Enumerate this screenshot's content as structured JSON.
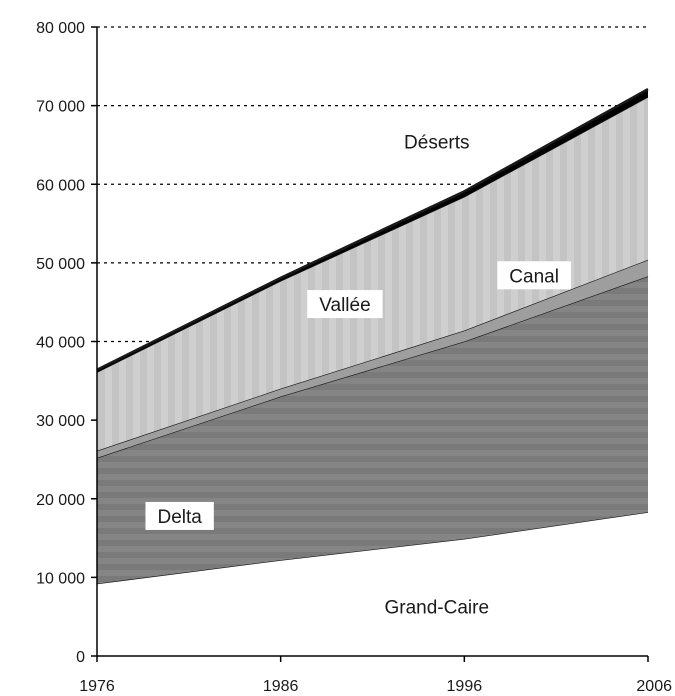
{
  "chart_data": {
    "type": "area",
    "stacked": true,
    "x": [
      1976,
      1986,
      1996,
      2006
    ],
    "xticks": [
      "1976",
      "1986",
      "1996",
      "2006"
    ],
    "ylim": [
      0,
      80000
    ],
    "yticks": [
      0,
      10000,
      20000,
      30000,
      40000,
      50000,
      60000,
      70000,
      80000
    ],
    "ytick_labels": [
      "0",
      "10 000",
      "20 000",
      "30 000",
      "40 000",
      "50 000",
      "60 000",
      "70 000",
      "80 000"
    ],
    "grid": "horizontal dotted lines behind the areas",
    "series": [
      {
        "name": "Grand-Caire",
        "values": [
          9200,
          12200,
          14900,
          18300
        ],
        "color": "#ffffff"
      },
      {
        "name": "Delta",
        "values": [
          16000,
          20800,
          25100,
          30000
        ],
        "color": "#808080"
      },
      {
        "name": "Canal",
        "values": [
          900,
          1000,
          1400,
          2100
        ],
        "color": "#9e9e9e"
      },
      {
        "name": "Vallée",
        "values": [
          10000,
          13700,
          17000,
          20700
        ],
        "color": "#cccccc"
      },
      {
        "name": "Déserts",
        "values": [
          300,
          400,
          700,
          1000
        ],
        "color": "#000000"
      }
    ],
    "labels": [
      {
        "text": "Déserts",
        "series": "Déserts"
      },
      {
        "text": "Vallée",
        "series": "Vallée"
      },
      {
        "text": "Canal",
        "series": "Canal"
      },
      {
        "text": "Delta",
        "series": "Delta"
      },
      {
        "text": "Grand-Caire",
        "series": "Grand-Caire"
      }
    ]
  }
}
